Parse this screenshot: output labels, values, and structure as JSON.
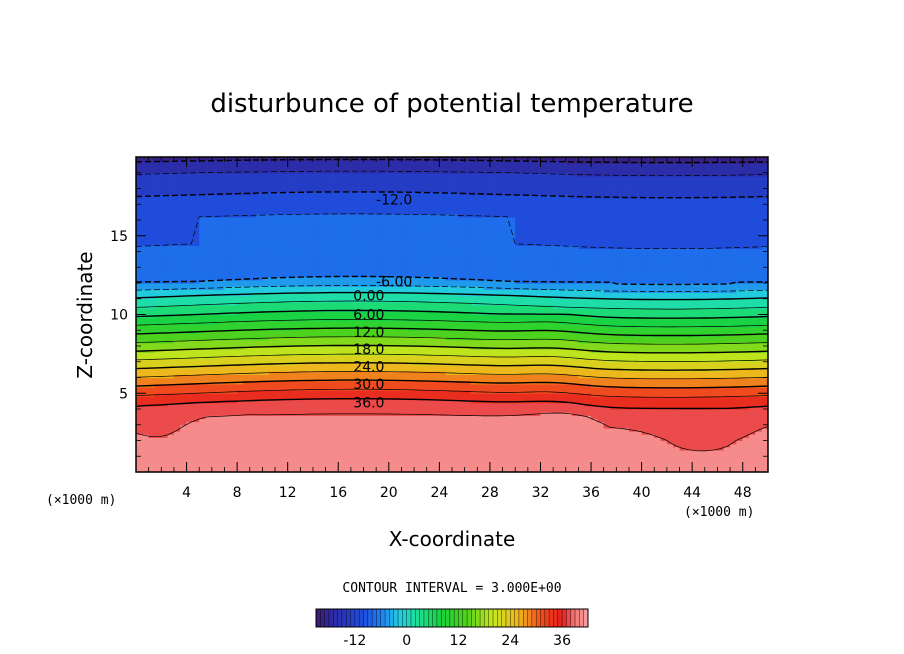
{
  "chart_data": {
    "type": "heatmap",
    "title": "disturbunce of potential temperature",
    "xlabel": "X-coordinate",
    "ylabel": "Z-coordinate",
    "x_unit": "(×1000 m)",
    "y_unit": "(×1000 m)",
    "xlim": [
      0,
      50
    ],
    "ylim": [
      0,
      20
    ],
    "x_ticks": [
      4,
      8,
      12,
      16,
      20,
      24,
      28,
      32,
      36,
      40,
      44,
      48
    ],
    "y_ticks": [
      5,
      10,
      15
    ],
    "contour_interval_text": "CONTOUR INTERVAL = 3.000E+00",
    "contour_interval": 3.0,
    "contour_labels": [
      {
        "text": "-12.0",
        "value": -12.0,
        "x": 19,
        "z": 17.3
      },
      {
        "text": "-6.00",
        "value": -6.0,
        "x": 19,
        "z": 12.1
      },
      {
        "text": "0.00",
        "value": 0.0,
        "x": 17,
        "z": 11.2
      },
      {
        "text": "6.00",
        "value": 6.0,
        "x": 17,
        "z": 10.0
      },
      {
        "text": "12.0",
        "value": 12.0,
        "x": 17,
        "z": 8.9
      },
      {
        "text": "18.0",
        "value": 18.0,
        "x": 17,
        "z": 7.8
      },
      {
        "text": "24.0",
        "value": 24.0,
        "x": 17,
        "z": 6.7
      },
      {
        "text": "30.0",
        "value": 30.0,
        "x": 17,
        "z": 5.6
      },
      {
        "text": "36.0",
        "value": 36.0,
        "x": 17,
        "z": 4.4
      }
    ],
    "colorbar": {
      "range": [
        -21,
        42
      ],
      "tick_labels": [
        "-12",
        "0",
        "12",
        "24",
        "36"
      ],
      "tick_values": [
        -12,
        0,
        12,
        24,
        36
      ]
    },
    "colormap": [
      {
        "v": -21,
        "color": "#3c1c6e"
      },
      {
        "v": -16,
        "color": "#2a2fb0"
      },
      {
        "v": -10,
        "color": "#1f4fe0"
      },
      {
        "v": -6,
        "color": "#1e7ff0"
      },
      {
        "v": -2,
        "color": "#22c8e6"
      },
      {
        "v": 2,
        "color": "#1ee0a0"
      },
      {
        "v": 8,
        "color": "#18d23c"
      },
      {
        "v": 14,
        "color": "#52d21c"
      },
      {
        "v": 20,
        "color": "#c8e61e"
      },
      {
        "v": 26,
        "color": "#f0b41e"
      },
      {
        "v": 31,
        "color": "#f0501e"
      },
      {
        "v": 36,
        "color": "#e61e1e"
      },
      {
        "v": 39,
        "color": "#f07878"
      },
      {
        "v": 42,
        "color": "#fa9e9e"
      }
    ],
    "profile": [
      {
        "z": 0,
        "v": 40.5
      },
      {
        "z": 2,
        "v": 40.2
      },
      {
        "z": 3.5,
        "v": 39.0
      },
      {
        "z": 4.4,
        "v": 36.0
      },
      {
        "z": 5.6,
        "v": 30.0
      },
      {
        "z": 6.7,
        "v": 24.0
      },
      {
        "z": 7.8,
        "v": 18.0
      },
      {
        "z": 8.9,
        "v": 12.0
      },
      {
        "z": 10.0,
        "v": 6.0
      },
      {
        "z": 11.2,
        "v": 0.0
      },
      {
        "z": 12.1,
        "v": -6.0
      },
      {
        "z": 14.5,
        "v": -9.0
      },
      {
        "z": 16.2,
        "v": -9.0
      },
      {
        "z": 17.6,
        "v": -12.0
      },
      {
        "z": 19.0,
        "v": -15.0
      },
      {
        "z": 20,
        "v": -19.0
      }
    ]
  }
}
